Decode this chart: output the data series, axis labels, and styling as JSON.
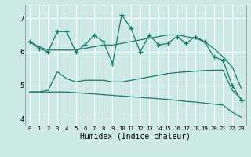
{
  "xlabel": "Humidex (Indice chaleur)",
  "x": [
    0,
    1,
    2,
    3,
    4,
    5,
    6,
    7,
    8,
    9,
    10,
    11,
    12,
    13,
    14,
    15,
    16,
    17,
    18,
    19,
    20,
    21,
    22,
    23
  ],
  "line_zigzag": [
    6.3,
    6.1,
    6.0,
    6.6,
    6.6,
    6.0,
    6.2,
    6.5,
    6.3,
    5.65,
    7.1,
    6.7,
    6.0,
    6.5,
    6.2,
    6.25,
    6.45,
    6.25,
    6.45,
    6.3,
    5.85,
    5.75,
    5.0,
    4.55
  ],
  "line_upper": [
    6.3,
    6.15,
    6.05,
    6.05,
    6.05,
    6.05,
    6.1,
    6.15,
    6.2,
    6.2,
    6.25,
    6.3,
    6.35,
    6.4,
    6.45,
    6.5,
    6.5,
    6.45,
    6.4,
    6.3,
    6.1,
    5.85,
    5.55,
    4.9
  ],
  "line_mid": [
    4.8,
    4.8,
    4.85,
    5.4,
    5.2,
    5.1,
    5.15,
    5.15,
    5.15,
    5.1,
    5.1,
    5.15,
    5.2,
    5.25,
    5.3,
    5.35,
    5.38,
    5.4,
    5.42,
    5.44,
    5.45,
    5.45,
    4.85,
    4.6
  ],
  "line_lower": [
    4.8,
    4.8,
    4.8,
    4.8,
    4.8,
    4.78,
    4.76,
    4.74,
    4.72,
    4.7,
    4.68,
    4.66,
    4.64,
    4.62,
    4.6,
    4.58,
    4.55,
    4.52,
    4.5,
    4.47,
    4.44,
    4.41,
    4.2,
    4.05
  ],
  "ylim": [
    3.8,
    7.4
  ],
  "yticks": [
    4,
    5,
    6,
    7
  ],
  "xticks": [
    0,
    1,
    2,
    3,
    4,
    5,
    6,
    7,
    8,
    9,
    10,
    11,
    12,
    13,
    14,
    15,
    16,
    17,
    18,
    19,
    20,
    21,
    22,
    23
  ],
  "bg_color": "#cce9e5",
  "grid_color": "#ffffff",
  "line_color": "#1a7a6e",
  "marker": "+",
  "marker_size": 4
}
